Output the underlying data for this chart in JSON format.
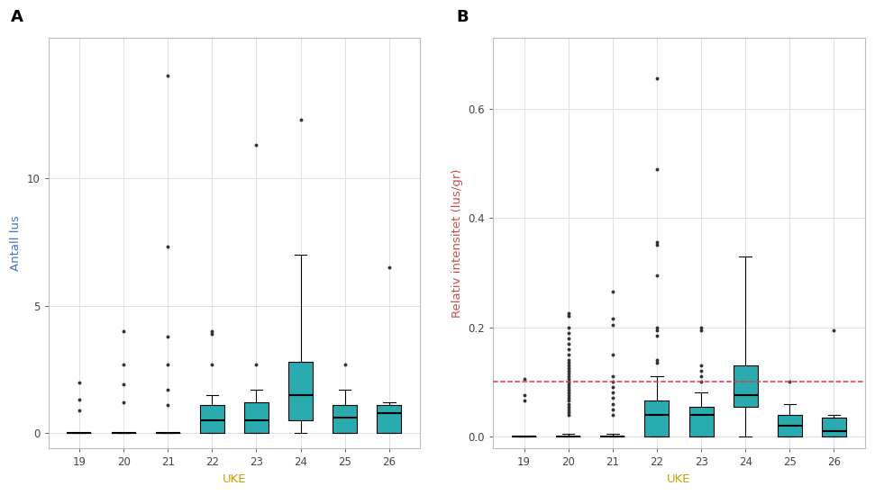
{
  "weeks": [
    19,
    20,
    21,
    22,
    23,
    24,
    25,
    26
  ],
  "panel_A": {
    "ylabel": "Antall lus",
    "ylabel_color": "#4472C4",
    "xlabel": "UKE",
    "xlabel_color": "#C8A000",
    "ylim": [
      -0.6,
      15.5
    ],
    "yticks": [
      0,
      5,
      10
    ],
    "box_data": {
      "19": {
        "q1": 0,
        "median": 0,
        "q3": 0,
        "whislo": 0,
        "whishi": 0,
        "fliers": [
          0.9,
          1.3,
          2.0
        ]
      },
      "20": {
        "q1": 0,
        "median": 0,
        "q3": 0,
        "whislo": 0,
        "whishi": 0,
        "fliers": [
          1.2,
          1.9,
          2.7,
          4.0
        ]
      },
      "21": {
        "q1": 0,
        "median": 0,
        "q3": 0,
        "whislo": 0,
        "whishi": 0,
        "fliers": [
          1.1,
          1.7,
          2.7,
          3.8,
          7.3,
          14.0
        ]
      },
      "22": {
        "q1": 0.0,
        "median": 0.5,
        "q3": 1.1,
        "whislo": 0.0,
        "whishi": 1.5,
        "fliers": [
          2.7,
          3.9,
          4.0
        ]
      },
      "23": {
        "q1": 0.0,
        "median": 0.5,
        "q3": 1.2,
        "whislo": 0.0,
        "whishi": 1.7,
        "fliers": [
          2.7,
          11.3
        ]
      },
      "24": {
        "q1": 0.5,
        "median": 1.5,
        "q3": 2.8,
        "whislo": 0.0,
        "whishi": 7.0,
        "fliers": [
          12.3
        ]
      },
      "25": {
        "q1": 0.0,
        "median": 0.6,
        "q3": 1.1,
        "whislo": 0.0,
        "whishi": 1.7,
        "fliers": [
          2.7
        ]
      },
      "26": {
        "q1": 0.0,
        "median": 0.8,
        "q3": 1.1,
        "whislo": 0.0,
        "whishi": 1.2,
        "fliers": [
          6.5
        ]
      }
    },
    "label": "A"
  },
  "panel_B": {
    "ylabel": "Relativ intensitet (lus/gr)",
    "ylabel_color": "#C0504D",
    "xlabel": "UKE",
    "xlabel_color": "#C8A000",
    "ylim": [
      -0.022,
      0.73
    ],
    "yticks": [
      0.0,
      0.2,
      0.4,
      0.6
    ],
    "dashed_line_y": 0.1,
    "dashed_line_color": "#EE3333",
    "box_data": {
      "19": {
        "q1": 0,
        "median": 0,
        "q3": 0,
        "whislo": 0,
        "whishi": 0,
        "fliers": [
          0.065,
          0.075,
          0.105
        ]
      },
      "20": {
        "q1": 0,
        "median": 0.0,
        "q3": 0.0,
        "whislo": 0,
        "whishi": 0.005,
        "fliers": [
          0.04,
          0.045,
          0.05,
          0.055,
          0.06,
          0.065,
          0.07,
          0.075,
          0.08,
          0.085,
          0.09,
          0.095,
          0.1,
          0.105,
          0.11,
          0.115,
          0.12,
          0.125,
          0.13,
          0.135,
          0.14,
          0.15,
          0.16,
          0.17,
          0.18,
          0.19,
          0.2,
          0.22,
          0.225
        ]
      },
      "21": {
        "q1": 0,
        "median": 0,
        "q3": 0,
        "whislo": 0,
        "whishi": 0.005,
        "fliers": [
          0.04,
          0.05,
          0.06,
          0.07,
          0.08,
          0.09,
          0.1,
          0.11,
          0.15,
          0.205,
          0.215,
          0.265
        ]
      },
      "22": {
        "q1": 0.0,
        "median": 0.04,
        "q3": 0.065,
        "whislo": 0.0,
        "whishi": 0.11,
        "fliers": [
          0.135,
          0.14,
          0.185,
          0.195,
          0.2,
          0.295,
          0.35,
          0.355,
          0.49,
          0.655
        ]
      },
      "23": {
        "q1": 0.0,
        "median": 0.04,
        "q3": 0.055,
        "whislo": 0.0,
        "whishi": 0.08,
        "fliers": [
          0.1,
          0.11,
          0.12,
          0.13,
          0.195,
          0.2
        ]
      },
      "24": {
        "q1": 0.055,
        "median": 0.075,
        "q3": 0.13,
        "whislo": 0.0,
        "whishi": 0.33,
        "fliers": []
      },
      "25": {
        "q1": 0.0,
        "median": 0.02,
        "q3": 0.04,
        "whislo": 0.0,
        "whishi": 0.06,
        "fliers": [
          0.1
        ]
      },
      "26": {
        "q1": 0.0,
        "median": 0.01,
        "q3": 0.035,
        "whislo": 0.0,
        "whishi": 0.04,
        "fliers": [
          0.195
        ]
      }
    },
    "label": "B"
  },
  "box_color": "#29ABB0",
  "box_edge_color": "#000000",
  "median_color": "#000000",
  "whisker_color": "#000000",
  "flier_color": "#333333",
  "flier_size": 2.8,
  "box_width": 0.55,
  "background_color": "#FFFFFF",
  "grid_color": "#E0E0E0",
  "tick_label_color": "#444444",
  "tick_label_size": 8.5,
  "axis_label_size": 9.5
}
